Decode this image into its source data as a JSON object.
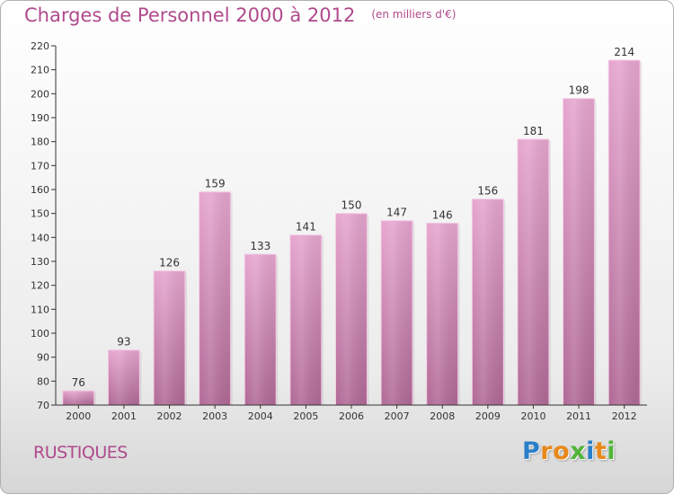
{
  "header": {
    "title": "Charges de Personnel 2000 à 2012",
    "subtitle": "(en milliers d'€)"
  },
  "footer": {
    "place": "RUSTIQUES",
    "logo": [
      {
        "ch": "P",
        "color": "#2a7fc9"
      },
      {
        "ch": "r",
        "color": "#e8881b"
      },
      {
        "ch": "o",
        "color": "#e8881b"
      },
      {
        "ch": "x",
        "color": "#52b43a"
      },
      {
        "ch": "i",
        "color": "#2a7fc9"
      },
      {
        "ch": "t",
        "color": "#e8881b"
      },
      {
        "ch": "i",
        "color": "#52b43a"
      }
    ]
  },
  "colors": {
    "bar_top": "#e6a6cf",
    "bar_bottom": "#b06a96",
    "accent": "#b04a8c"
  },
  "chart_data": {
    "type": "bar",
    "categories": [
      "2000",
      "2001",
      "2002",
      "2003",
      "2004",
      "2005",
      "2006",
      "2007",
      "2008",
      "2009",
      "2010",
      "2011",
      "2012"
    ],
    "values": [
      76,
      93,
      126,
      159,
      133,
      141,
      150,
      147,
      146,
      156,
      181,
      198,
      214
    ],
    "title": "Charges de Personnel 2000 à 2012",
    "subtitle": "(en milliers d'€)",
    "xlabel": "",
    "ylabel": "",
    "ylim": [
      70,
      220
    ],
    "yticks": [
      70,
      80,
      90,
      100,
      110,
      120,
      130,
      140,
      150,
      160,
      170,
      180,
      190,
      200,
      210,
      220
    ],
    "grid": false,
    "legend": "none"
  }
}
